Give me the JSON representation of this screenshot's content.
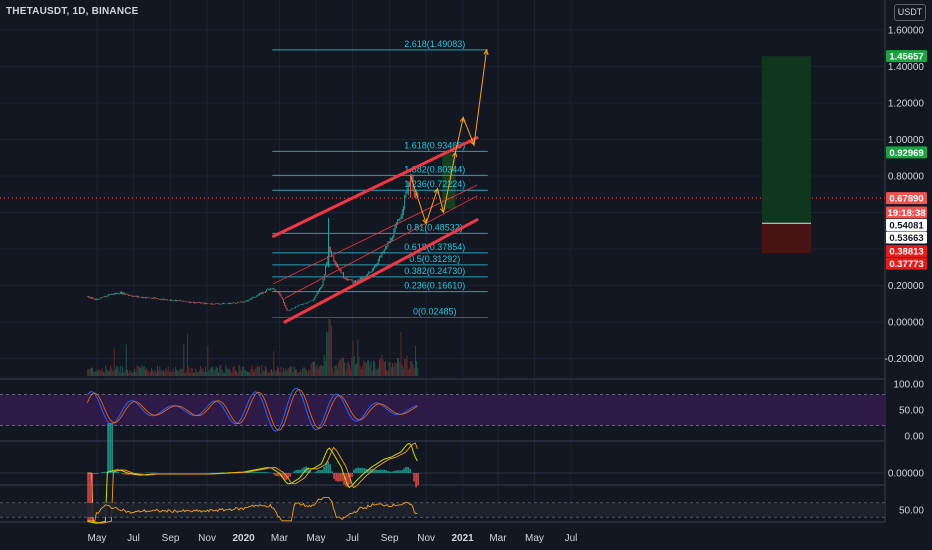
{
  "header": {
    "symbol": "THETAUSDT, 1D, BINANCE",
    "currency": "USDT"
  },
  "chart_data": [
    {
      "type": "line",
      "title": "THETAUSDT, 1D, BINANCE",
      "x_tick_labels": [
        "May",
        "Jul",
        "Sep",
        "Nov",
        "2020",
        "Mar",
        "May",
        "Jul",
        "Sep",
        "Nov",
        "2021",
        "Mar",
        "May",
        "Jul"
      ],
      "y_tick_labels": [
        "1.60000",
        "1.40000",
        "1.20000",
        "1.00000",
        "0.80000",
        "0.60000",
        "0.40000",
        "0.20000",
        "0.00000",
        "-0.20000"
      ],
      "ylim": [
        -0.2,
        1.6
      ],
      "price_approx_series": [
        {
          "date": "2019-04-15",
          "price": 0.14
        },
        {
          "date": "2019-05-01",
          "price": 0.12
        },
        {
          "date": "2019-05-20",
          "price": 0.15
        },
        {
          "date": "2019-06-10",
          "price": 0.16
        },
        {
          "date": "2019-07-01",
          "price": 0.14
        },
        {
          "date": "2019-08-01",
          "price": 0.13
        },
        {
          "date": "2019-09-01",
          "price": 0.12
        },
        {
          "date": "2019-10-01",
          "price": 0.11
        },
        {
          "date": "2019-11-01",
          "price": 0.1
        },
        {
          "date": "2019-12-01",
          "price": 0.1
        },
        {
          "date": "2020-01-01",
          "price": 0.11
        },
        {
          "date": "2020-02-01",
          "price": 0.16
        },
        {
          "date": "2020-02-15",
          "price": 0.19
        },
        {
          "date": "2020-03-01",
          "price": 0.15
        },
        {
          "date": "2020-03-13",
          "price": 0.06
        },
        {
          "date": "2020-04-01",
          "price": 0.09
        },
        {
          "date": "2020-04-25",
          "price": 0.12
        },
        {
          "date": "2020-05-10",
          "price": 0.2
        },
        {
          "date": "2020-05-22",
          "price": 0.4
        },
        {
          "date": "2020-06-01",
          "price": 0.33
        },
        {
          "date": "2020-06-15",
          "price": 0.25
        },
        {
          "date": "2020-07-01",
          "price": 0.22
        },
        {
          "date": "2020-07-20",
          "price": 0.24
        },
        {
          "date": "2020-08-05",
          "price": 0.3
        },
        {
          "date": "2020-08-20",
          "price": 0.38
        },
        {
          "date": "2020-09-05",
          "price": 0.47
        },
        {
          "date": "2020-09-20",
          "price": 0.6
        },
        {
          "date": "2020-09-30",
          "price": 0.74
        },
        {
          "date": "2020-10-06",
          "price": 0.79
        },
        {
          "date": "2020-10-12",
          "price": 0.7
        },
        {
          "date": "2020-10-18",
          "price": 0.6789
        }
      ],
      "fib_levels": [
        {
          "label": "2.618(1.49083)",
          "value": 1.49083
        },
        {
          "label": "1.618(0.93469)",
          "value": 0.93469
        },
        {
          "label": "1.382(0.80344)",
          "value": 0.80344
        },
        {
          "label": "1.236(0.72224)",
          "value": 0.72224
        },
        {
          "label": "0.81(0.48532)",
          "value": 0.48532
        },
        {
          "label": "0.618(0.37854)",
          "value": 0.37854
        },
        {
          "label": "0.5(0.31292)",
          "value": 0.31292
        },
        {
          "label": "0.382(0.24730)",
          "value": 0.2473
        },
        {
          "label": "0.236(0.16610)",
          "value": 0.1661
        },
        {
          "label": "0(0.02485)",
          "value": 0.02485
        }
      ],
      "price_tags": [
        {
          "text": "1.45657",
          "value": 1.45657,
          "color": "#1aa33f"
        },
        {
          "text": "0.92969",
          "value": 0.92969,
          "color": "#1aa33f"
        },
        {
          "text": "0.67890",
          "value": 0.6789,
          "color": "#ef5350"
        },
        {
          "text": "19:18:38",
          "value": 0.6,
          "color": "#ef5350"
        },
        {
          "text": "0.54081",
          "value": 0.54081,
          "color": "#ffffff"
        },
        {
          "text": "0.53663",
          "value": 0.53663,
          "color": "#ffffff"
        },
        {
          "text": "0.38813",
          "value": 0.38813,
          "color": "#e51c1c"
        },
        {
          "text": "0.37773",
          "value": 0.37773,
          "color": "#e51c1c"
        }
      ],
      "channel": {
        "upper": [
          {
            "date": "2020-02-20",
            "price": 0.47
          },
          {
            "date": "2021-01-25",
            "price": 1.01
          }
        ],
        "lower": [
          {
            "date": "2020-03-10",
            "price": 0.0
          },
          {
            "date": "2021-01-25",
            "price": 0.56
          }
        ]
      },
      "projection_path": [
        {
          "date": "2020-10-06",
          "price": 0.8
        },
        {
          "date": "2020-11-01",
          "price": 0.54
        },
        {
          "date": "2020-11-20",
          "price": 0.73
        },
        {
          "date": "2020-11-30",
          "price": 0.6
        },
        {
          "date": "2020-12-20",
          "price": 0.93
        },
        {
          "date": "2021-01-02",
          "price": 1.12
        },
        {
          "date": "2021-01-20",
          "price": 0.97
        },
        {
          "date": "2021-02-10",
          "price": 1.49
        }
      ],
      "position": {
        "entry": 0.54081,
        "target": 1.45657,
        "stop": 0.37773
      }
    },
    {
      "type": "line",
      "title": "",
      "y_tick_labels": [
        "100.00",
        "50.00",
        "0.00"
      ],
      "ylim": [
        0,
        100
      ],
      "upper_band": 80,
      "lower_band": 20
    },
    {
      "type": "line",
      "title": "",
      "y_tick_labels": [
        "0.00000"
      ]
    },
    {
      "type": "line",
      "title": "",
      "y_tick_labels": [
        "50.00"
      ],
      "ylim": [
        0,
        100
      ],
      "upper_band": 70,
      "lower_band": 30
    }
  ]
}
